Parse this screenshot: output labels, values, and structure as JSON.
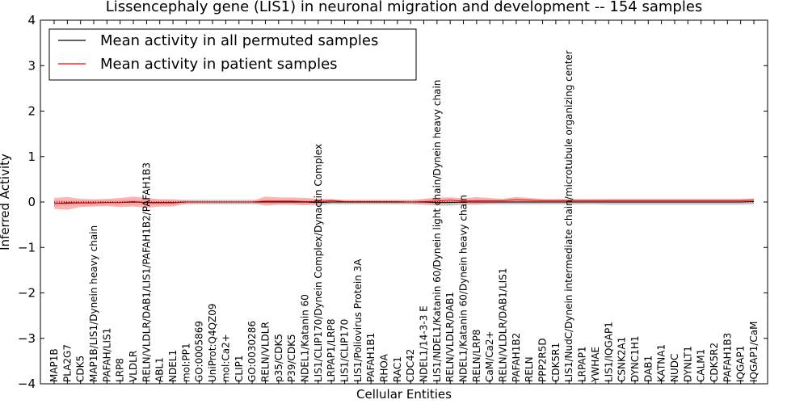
{
  "chart_data": {
    "type": "line",
    "title": "Lissencephaly gene (LIS1) in neuronal migration and development -- 154 samples",
    "xlabel": "Cellular Entities",
    "ylabel": "Inferred Activity",
    "ylim": [
      -4,
      4
    ],
    "yticks": [
      "−4",
      "−3",
      "−2",
      "−1",
      "0",
      "1",
      "2",
      "3",
      "4"
    ],
    "legend_position": "top-left",
    "grid": false,
    "categories": [
      "MAP1B",
      "PLA2G7",
      "CDK5",
      "MAP1B/LIS1/Dynein heavy chain",
      "PAFAH/LIS1",
      "LRP8",
      "VLDLR",
      "RELN/VLDLR/DAB1/LIS1/PAFAH1B2/PAFAH1B3",
      "ABL1",
      "NDEL1",
      "mol:PP1",
      "GO:0005869",
      "UniProt:Q4QZ09",
      "mol:Ca2+",
      "CLIP1",
      "GO:0030286",
      "RELN/VLDLR",
      "p35/CDK5",
      "P39/CDK5",
      "NDEL1/Katanin 60",
      "LIS1/CLIP170/Dynein Complex/Dynactin Complex",
      "LRPAP1/LRP8",
      "LIS1/CLIP170",
      "LIS1/Poliovirus Protein 3A",
      "PAFAH1B1",
      "RHOA",
      "RAC1",
      "CDC42",
      "NDEL1/14-3-3 E",
      "LIS1/NDEL1/Katanin 60/Dynein light chain/Dynein heavy chain",
      "RELN/VLDLR/DAB1",
      "NDEL1/Katanin 60/Dynein heavy chain",
      "RELN/LRP8",
      "CaM/Ca2+",
      "RELN/VLDLR/DAB1/LIS1",
      "PAFAH1B2",
      "RELN",
      "PPP2R5D",
      "CDK5R1",
      "LIS1/NudC/Dynein intermediate chain/microtubule organizing center",
      "LRPAP1",
      "YWHAE",
      "LIS1/IQGAP1",
      "CSNK2A1",
      "DYNC1H1",
      "DAB1",
      "KATNA1",
      "NUDC",
      "DYNLT1",
      "CALM1",
      "CDK5R2",
      "PAFAH1B3",
      "IQGAP1",
      "IQGAP1/CaM"
    ],
    "series": [
      {
        "name": "Mean activity in all permuted samples",
        "color": "#000000",
        "values": [
          -0.03,
          -0.02,
          -0.02,
          -0.02,
          -0.01,
          -0.01,
          0,
          -0.01,
          -0.01,
          -0.01,
          0,
          0,
          0,
          0,
          0,
          0,
          0,
          0,
          0,
          0,
          -0.01,
          0,
          0,
          0,
          0,
          0,
          0,
          0,
          0,
          -0.01,
          -0.01,
          0,
          0,
          0,
          0,
          0,
          0,
          0,
          0,
          0,
          0,
          0,
          0,
          0,
          0,
          0,
          0,
          0,
          0,
          0,
          0,
          0,
          0,
          0.01
        ],
        "band": [
          0.07,
          0.06,
          0.06,
          0.06,
          0.06,
          0.06,
          0.06,
          0.06,
          0.06,
          0.06,
          0.05,
          0.05,
          0.05,
          0.05,
          0.05,
          0.05,
          0.05,
          0.05,
          0.05,
          0.06,
          0.06,
          0.05,
          0.05,
          0.05,
          0.05,
          0.05,
          0.05,
          0.05,
          0.06,
          0.07,
          0.07,
          0.06,
          0.06,
          0.05,
          0.05,
          0.05,
          0.05,
          0.05,
          0.05,
          0.05,
          0.05,
          0.05,
          0.06,
          0.06,
          0.06,
          0.06,
          0.06,
          0.06,
          0.06,
          0.06,
          0.06,
          0.06,
          0.06,
          0.06
        ],
        "band_color": "#b3b3b3"
      },
      {
        "name": "Mean activity in patient samples",
        "color": "#ff0000",
        "values": [
          -0.03,
          -0.03,
          -0.02,
          -0.02,
          -0.01,
          -0.01,
          0.01,
          -0.02,
          -0.02,
          -0.02,
          0,
          0,
          0,
          0,
          0,
          0,
          0.02,
          0.02,
          0.02,
          0.01,
          0.01,
          0.03,
          0.01,
          0.01,
          0.01,
          0.01,
          0.01,
          0,
          0.01,
          0.02,
          0.04,
          0.02,
          0.03,
          0.03,
          0.03,
          0.05,
          0.04,
          0.03,
          0.03,
          0.03,
          0.03,
          0.03,
          0.03,
          0.03,
          0.03,
          0.03,
          0.03,
          0.03,
          0.03,
          0.03,
          0.03,
          0.03,
          0.03,
          0.04
        ],
        "band": [
          0.12,
          0.14,
          0.09,
          0.08,
          0.08,
          0.1,
          0.11,
          0.11,
          0.08,
          0.08,
          0.03,
          0.02,
          0.02,
          0.02,
          0.02,
          0.02,
          0.1,
          0.08,
          0.08,
          0.08,
          0.06,
          0.04,
          0.03,
          0.03,
          0.03,
          0.03,
          0.03,
          0.03,
          0.06,
          0.08,
          0.06,
          0.06,
          0.08,
          0.06,
          0.04,
          0.06,
          0.05,
          0.04,
          0.04,
          0.04,
          0.04,
          0.04,
          0.04,
          0.04,
          0.04,
          0.04,
          0.04,
          0.04,
          0.04,
          0.04,
          0.04,
          0.04,
          0.04,
          0.04
        ],
        "band_color": "#ff9999"
      }
    ]
  }
}
